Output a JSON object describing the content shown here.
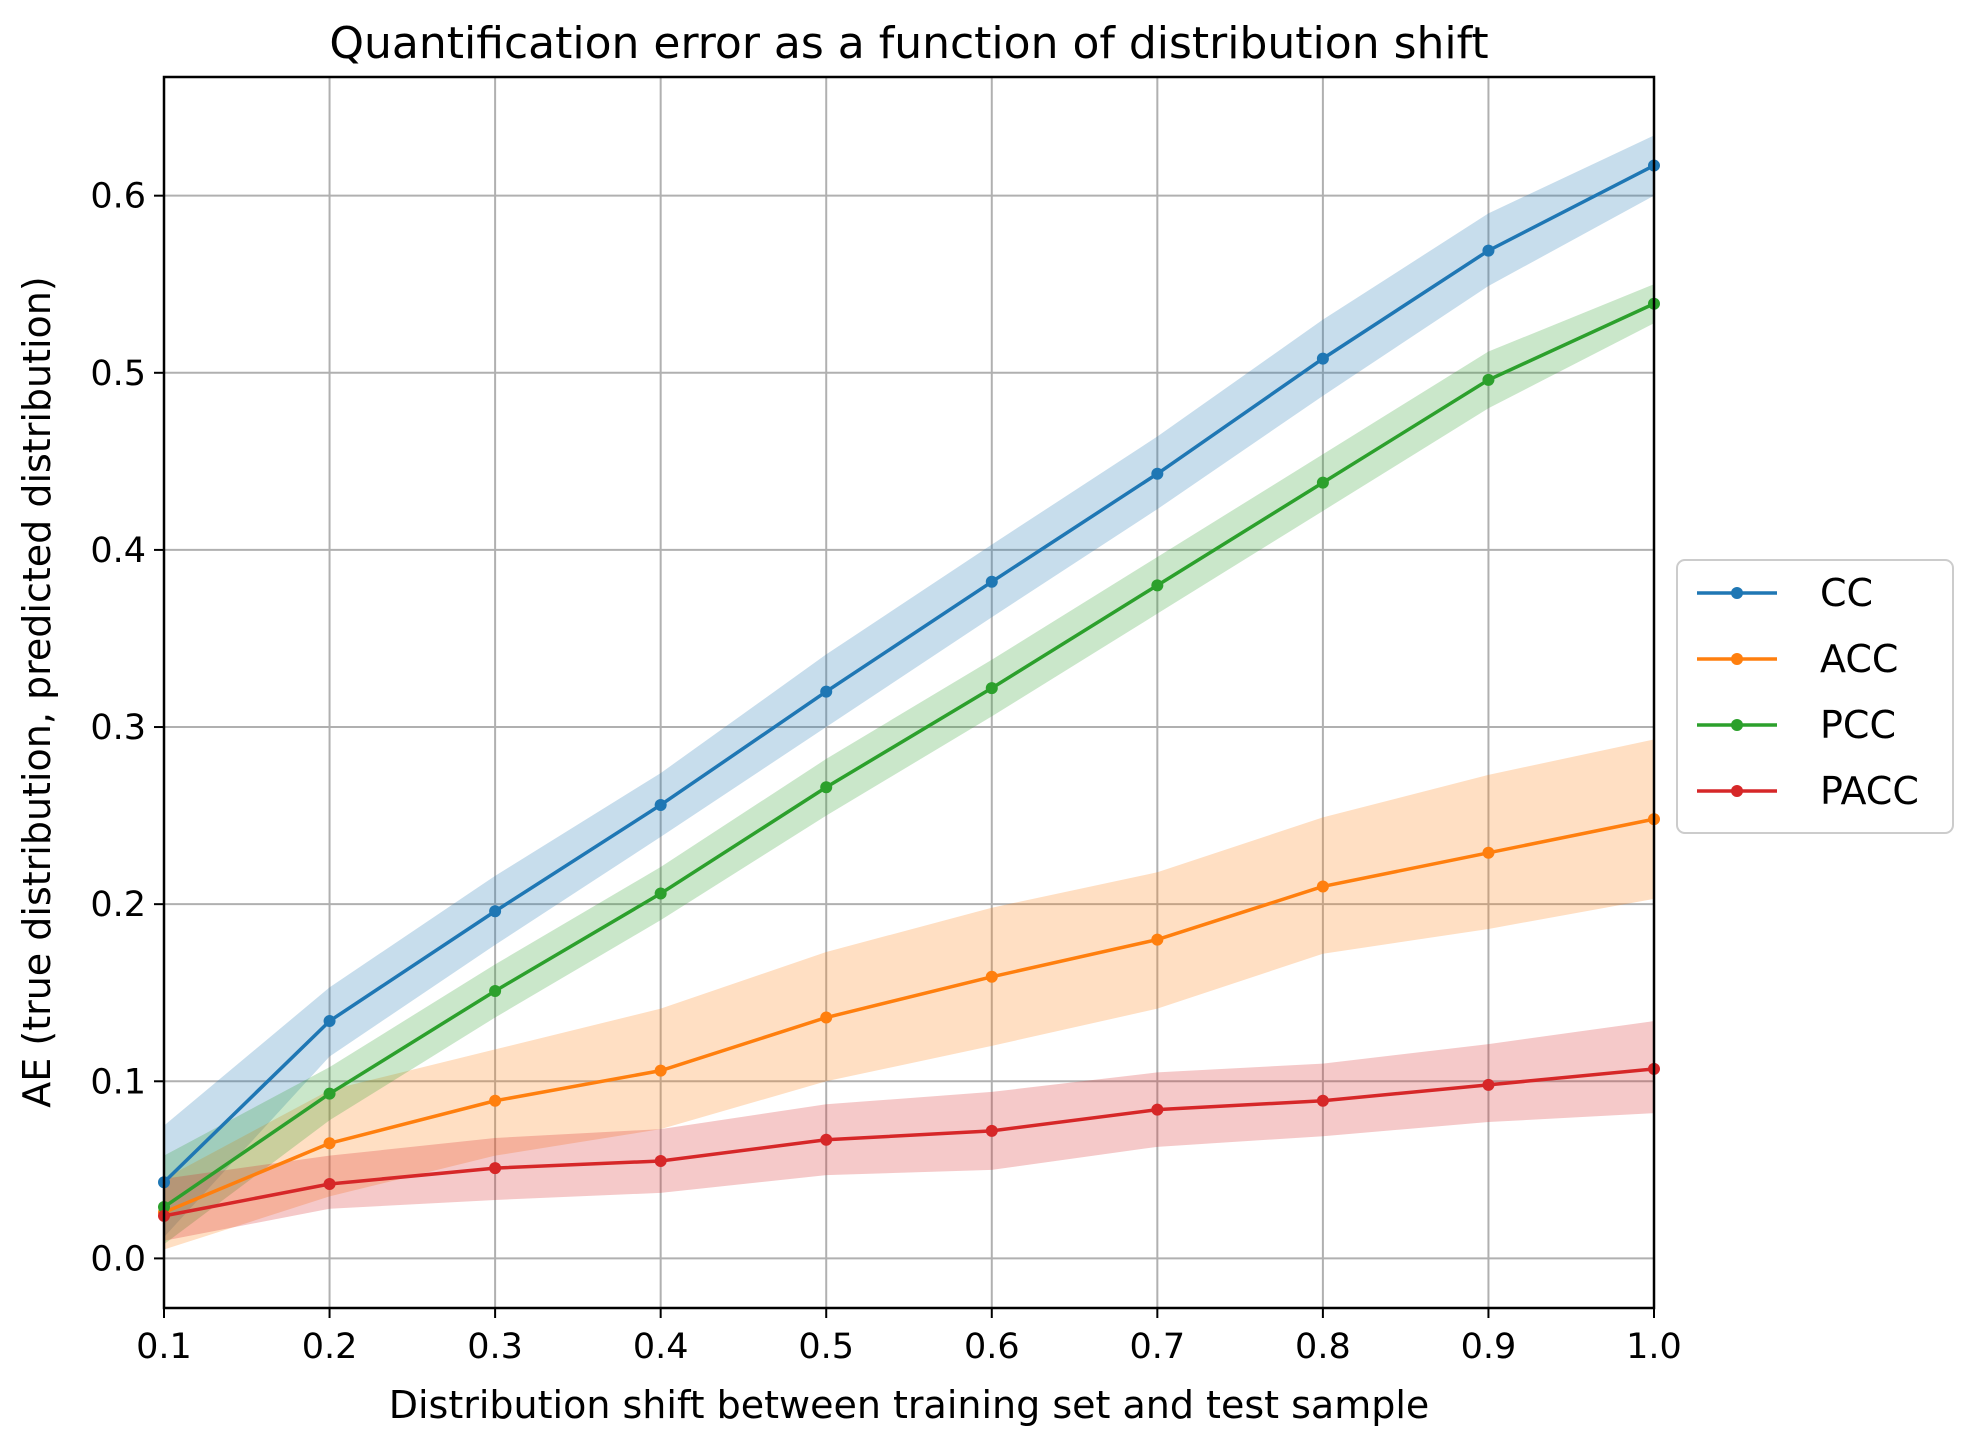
{
  "chart_data": {
    "type": "line",
    "title": "Quantification error as a function of distribution shift",
    "xlabel": "Distribution shift between training set and test sample",
    "ylabel": "AE (true distribution, predicted distribution)",
    "xlim": [
      0.1,
      1.0
    ],
    "ylim": [
      -0.028,
      0.667
    ],
    "xticks": [
      "0.1",
      "0.2",
      "0.3",
      "0.4",
      "0.5",
      "0.6",
      "0.7",
      "0.8",
      "0.9",
      "1.0"
    ],
    "yticks": [
      "0.0",
      "0.1",
      "0.2",
      "0.3",
      "0.4",
      "0.5",
      "0.6"
    ],
    "grid": true,
    "legend_position": "center-right-outside",
    "x": [
      0.1,
      0.2,
      0.3,
      0.4,
      0.5,
      0.6,
      0.7,
      0.8,
      0.9,
      1.0
    ],
    "series": [
      {
        "name": "CC",
        "color": "#1f77b4",
        "values": [
          0.043,
          0.134,
          0.196,
          0.256,
          0.32,
          0.382,
          0.443,
          0.508,
          0.569,
          0.617
        ],
        "lower": [
          0.012,
          0.114,
          0.177,
          0.238,
          0.3,
          0.362,
          0.423,
          0.487,
          0.549,
          0.6
        ],
        "upper": [
          0.075,
          0.153,
          0.216,
          0.274,
          0.341,
          0.403,
          0.464,
          0.53,
          0.59,
          0.634
        ]
      },
      {
        "name": "ACC",
        "color": "#ff7f0e",
        "values": [
          0.026,
          0.065,
          0.089,
          0.106,
          0.136,
          0.159,
          0.18,
          0.21,
          0.229,
          0.248
        ],
        "lower": [
          0.005,
          0.035,
          0.058,
          0.073,
          0.1,
          0.12,
          0.141,
          0.172,
          0.186,
          0.203
        ],
        "upper": [
          0.045,
          0.095,
          0.118,
          0.141,
          0.173,
          0.198,
          0.218,
          0.249,
          0.273,
          0.293
        ]
      },
      {
        "name": "PCC",
        "color": "#2ca02c",
        "values": [
          0.029,
          0.093,
          0.151,
          0.206,
          0.266,
          0.322,
          0.38,
          0.438,
          0.496,
          0.539
        ],
        "lower": [
          0.008,
          0.078,
          0.136,
          0.191,
          0.25,
          0.306,
          0.364,
          0.422,
          0.48,
          0.528
        ],
        "upper": [
          0.058,
          0.108,
          0.166,
          0.221,
          0.282,
          0.338,
          0.396,
          0.454,
          0.512,
          0.55
        ]
      },
      {
        "name": "PACC",
        "color": "#d62728",
        "values": [
          0.024,
          0.042,
          0.051,
          0.055,
          0.067,
          0.072,
          0.084,
          0.089,
          0.098,
          0.107
        ],
        "lower": [
          0.01,
          0.028,
          0.033,
          0.037,
          0.047,
          0.05,
          0.063,
          0.069,
          0.077,
          0.082
        ],
        "upper": [
          0.045,
          0.058,
          0.068,
          0.073,
          0.087,
          0.094,
          0.105,
          0.11,
          0.121,
          0.134
        ]
      }
    ]
  }
}
